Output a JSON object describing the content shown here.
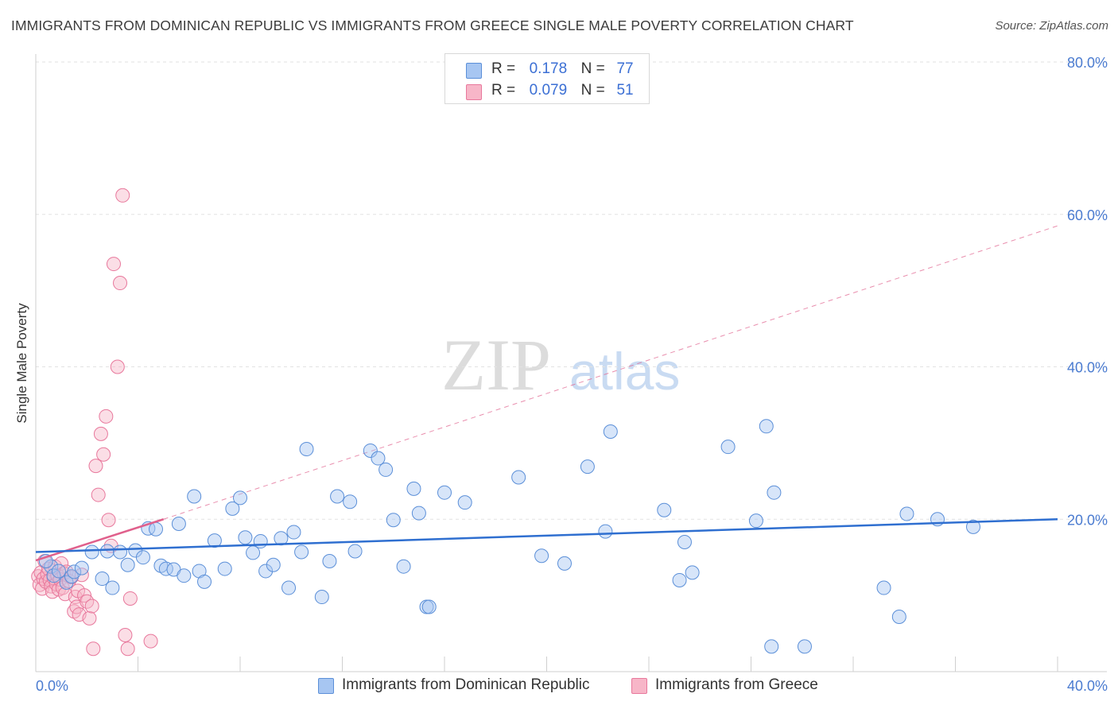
{
  "title": "IMMIGRANTS FROM DOMINICAN REPUBLIC VS IMMIGRANTS FROM GREECE SINGLE MALE POVERTY CORRELATION CHART",
  "source": "Source: ZipAtlas.com",
  "watermark": {
    "zip": "ZIP",
    "atlas": "atlas"
  },
  "legend": {
    "rows": [
      {
        "r_label": "R =",
        "r_value": "0.178",
        "n_label": "N =",
        "n_value": "77",
        "color": "#a7c6f2"
      },
      {
        "r_label": "R =",
        "r_value": "0.079",
        "n_label": "N =",
        "n_value": "51",
        "color": "#f7b6c8"
      }
    ]
  },
  "bottom_legend": [
    {
      "label": "Immigrants from Dominican Republic",
      "color": "#a7c6f2"
    },
    {
      "label": "Immigrants from Greece",
      "color": "#f7b6c8"
    }
  ],
  "colors": {
    "blue_fill": "#a7c6f2",
    "blue_stroke": "#5b8fd8",
    "blue_line": "#2f6fd0",
    "pink_fill": "#f7b6c8",
    "pink_stroke": "#e8789c",
    "pink_line": "#e0608c",
    "tick": "#4a7bd0",
    "grid": "#e2e2e2"
  },
  "chart_data": {
    "type": "scatter",
    "title": "IMMIGRANTS FROM DOMINICAN REPUBLIC VS IMMIGRANTS FROM GREECE SINGLE MALE POVERTY CORRELATION CHART",
    "xlabel": "",
    "ylabel": "Single Male Poverty",
    "xlim": [
      0,
      40
    ],
    "ylim": [
      0,
      80
    ],
    "x_tick_labels": [
      "0.0%",
      "40.0%"
    ],
    "y_ticks": [
      20,
      40,
      60,
      80
    ],
    "y_tick_labels": [
      "20.0%",
      "40.0%",
      "60.0%",
      "80.0%"
    ],
    "grid": true,
    "series": [
      {
        "name": "Immigrants from Dominican Republic",
        "R": 0.178,
        "N": 77,
        "points": [
          [
            0.6,
            13.8
          ],
          [
            0.7,
            12.6
          ],
          [
            0.9,
            13.2
          ],
          [
            1.2,
            11.7
          ],
          [
            1.4,
            12.5
          ],
          [
            1.5,
            13.1
          ],
          [
            1.8,
            13.6
          ],
          [
            2.2,
            15.7
          ],
          [
            2.6,
            12.2
          ],
          [
            2.8,
            15.8
          ],
          [
            3.0,
            11.0
          ],
          [
            3.3,
            15.7
          ],
          [
            3.6,
            14.0
          ],
          [
            3.9,
            15.9
          ],
          [
            4.2,
            15.0
          ],
          [
            4.4,
            18.8
          ],
          [
            4.7,
            18.7
          ],
          [
            4.9,
            13.9
          ],
          [
            5.1,
            13.5
          ],
          [
            5.4,
            13.4
          ],
          [
            5.6,
            19.4
          ],
          [
            5.8,
            12.6
          ],
          [
            6.2,
            23.0
          ],
          [
            6.4,
            13.2
          ],
          [
            6.6,
            11.8
          ],
          [
            7.0,
            17.2
          ],
          [
            7.4,
            13.5
          ],
          [
            7.7,
            21.4
          ],
          [
            8.0,
            22.8
          ],
          [
            8.2,
            17.6
          ],
          [
            8.5,
            15.6
          ],
          [
            8.8,
            17.1
          ],
          [
            9.0,
            13.2
          ],
          [
            9.3,
            14.0
          ],
          [
            9.6,
            17.5
          ],
          [
            9.9,
            11.0
          ],
          [
            10.1,
            18.3
          ],
          [
            10.4,
            15.7
          ],
          [
            10.6,
            29.2
          ],
          [
            11.2,
            9.8
          ],
          [
            11.5,
            14.5
          ],
          [
            11.8,
            23.0
          ],
          [
            12.3,
            22.3
          ],
          [
            12.5,
            15.8
          ],
          [
            13.1,
            29.0
          ],
          [
            13.4,
            28.0
          ],
          [
            13.7,
            26.5
          ],
          [
            14.0,
            19.9
          ],
          [
            14.4,
            13.8
          ],
          [
            14.8,
            24.0
          ],
          [
            15.0,
            20.8
          ],
          [
            15.3,
            8.5
          ],
          [
            15.4,
            8.5
          ],
          [
            16.0,
            23.5
          ],
          [
            16.8,
            22.2
          ],
          [
            18.9,
            25.5
          ],
          [
            19.8,
            15.2
          ],
          [
            20.7,
            14.2
          ],
          [
            21.6,
            26.9
          ],
          [
            22.3,
            18.4
          ],
          [
            22.5,
            31.5
          ],
          [
            24.6,
            21.2
          ],
          [
            25.2,
            12.0
          ],
          [
            25.4,
            17.0
          ],
          [
            25.7,
            13.0
          ],
          [
            27.1,
            29.5
          ],
          [
            28.2,
            19.8
          ],
          [
            28.6,
            32.2
          ],
          [
            28.8,
            3.3
          ],
          [
            28.9,
            23.5
          ],
          [
            30.1,
            3.3
          ],
          [
            33.2,
            11.0
          ],
          [
            33.8,
            7.2
          ],
          [
            34.1,
            20.7
          ],
          [
            35.3,
            20.0
          ],
          [
            36.7,
            19.0
          ],
          [
            0.4,
            14.5
          ]
        ],
        "trend": {
          "x": [
            0,
            40
          ],
          "y": [
            15.7,
            20.0
          ]
        }
      },
      {
        "name": "Immigrants from Greece",
        "R": 0.079,
        "N": 51,
        "points": [
          [
            0.1,
            12.5
          ],
          [
            0.15,
            11.4
          ],
          [
            0.2,
            13.0
          ],
          [
            0.25,
            10.9
          ],
          [
            0.3,
            12.2
          ],
          [
            0.35,
            14.5
          ],
          [
            0.4,
            11.8
          ],
          [
            0.45,
            12.8
          ],
          [
            0.5,
            13.5
          ],
          [
            0.55,
            12.0
          ],
          [
            0.6,
            11.2
          ],
          [
            0.65,
            10.5
          ],
          [
            0.7,
            12.3
          ],
          [
            0.75,
            13.8
          ],
          [
            0.8,
            11.5
          ],
          [
            0.85,
            12.6
          ],
          [
            0.9,
            10.8
          ],
          [
            0.95,
            12.1
          ],
          [
            1.0,
            14.2
          ],
          [
            1.05,
            11.0
          ],
          [
            1.1,
            12.9
          ],
          [
            1.15,
            10.2
          ],
          [
            1.2,
            13.1
          ],
          [
            1.3,
            11.9
          ],
          [
            1.4,
            12.4
          ],
          [
            1.5,
            7.9
          ],
          [
            1.55,
            9.8
          ],
          [
            1.6,
            8.5
          ],
          [
            1.65,
            10.6
          ],
          [
            1.7,
            7.5
          ],
          [
            1.8,
            12.7
          ],
          [
            1.9,
            10.0
          ],
          [
            2.0,
            9.2
          ],
          [
            2.1,
            7.0
          ],
          [
            2.2,
            8.6
          ],
          [
            2.25,
            3.0
          ],
          [
            2.35,
            27.0
          ],
          [
            2.45,
            23.2
          ],
          [
            2.55,
            31.2
          ],
          [
            2.65,
            28.5
          ],
          [
            2.75,
            33.5
          ],
          [
            2.85,
            19.9
          ],
          [
            2.95,
            16.5
          ],
          [
            3.05,
            53.5
          ],
          [
            3.2,
            40.0
          ],
          [
            3.3,
            51.0
          ],
          [
            3.4,
            62.5
          ],
          [
            3.5,
            4.8
          ],
          [
            3.6,
            3.0
          ],
          [
            3.7,
            9.6
          ],
          [
            4.5,
            4.0
          ]
        ],
        "trend": {
          "x": [
            0,
            5.0
          ],
          "y": [
            14.6,
            20.0
          ]
        },
        "trend_dashed": {
          "x": [
            5.0,
            40
          ],
          "y": [
            20.0,
            58.5
          ]
        }
      }
    ]
  }
}
